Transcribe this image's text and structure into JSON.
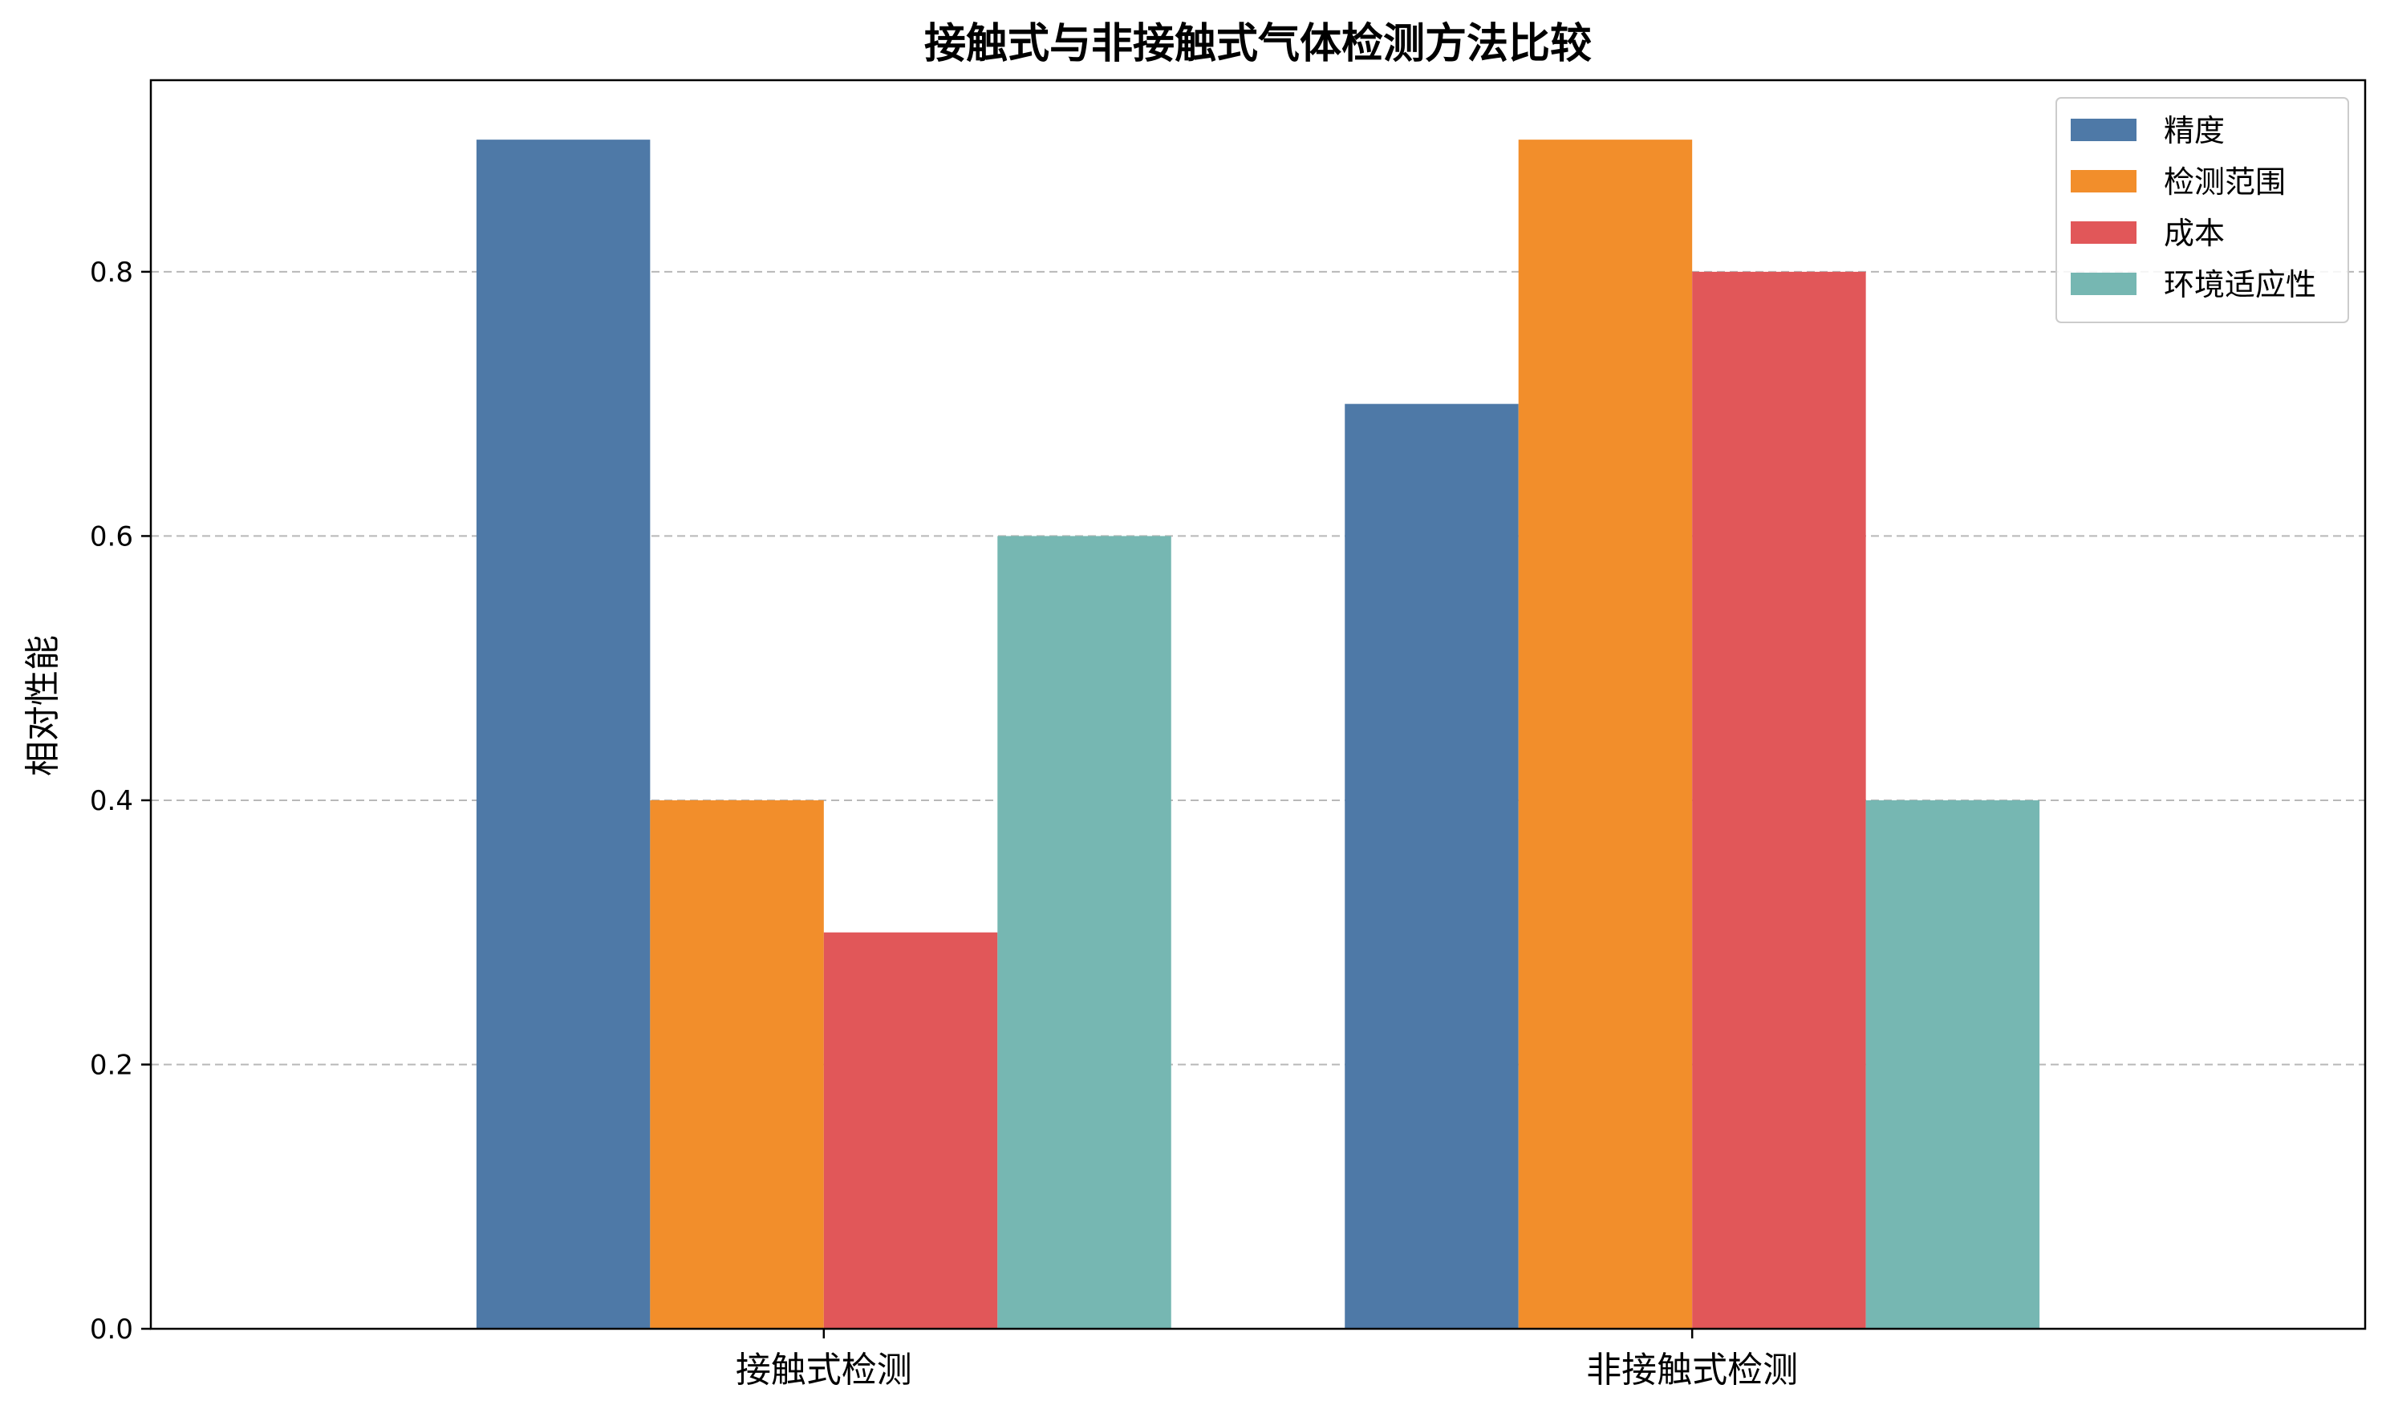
{
  "chart_data": {
    "type": "bar",
    "title": "接触式与非接触式气体检测方法比较",
    "xlabel": "",
    "ylabel": "相对性能",
    "categories": [
      "接触式检测",
      "非接触式检测"
    ],
    "series": [
      {
        "name": "精度",
        "values": [
          0.9,
          0.7
        ],
        "color": "#4e79a7"
      },
      {
        "name": "检测范围",
        "values": [
          0.4,
          0.9
        ],
        "color": "#f28e2b"
      },
      {
        "name": "成本",
        "values": [
          0.3,
          0.8
        ],
        "color": "#e15759"
      },
      {
        "name": "环境适应性",
        "values": [
          0.6,
          0.4
        ],
        "color": "#76b7b2"
      }
    ],
    "ylim": [
      0,
      0.945
    ],
    "yticks": [
      0.0,
      0.2,
      0.4,
      0.6,
      0.8
    ],
    "ytick_labels": [
      "0.0",
      "0.2",
      "0.4",
      "0.6",
      "0.8"
    ],
    "grid": "y-dashed",
    "legend_position": "top-right"
  }
}
